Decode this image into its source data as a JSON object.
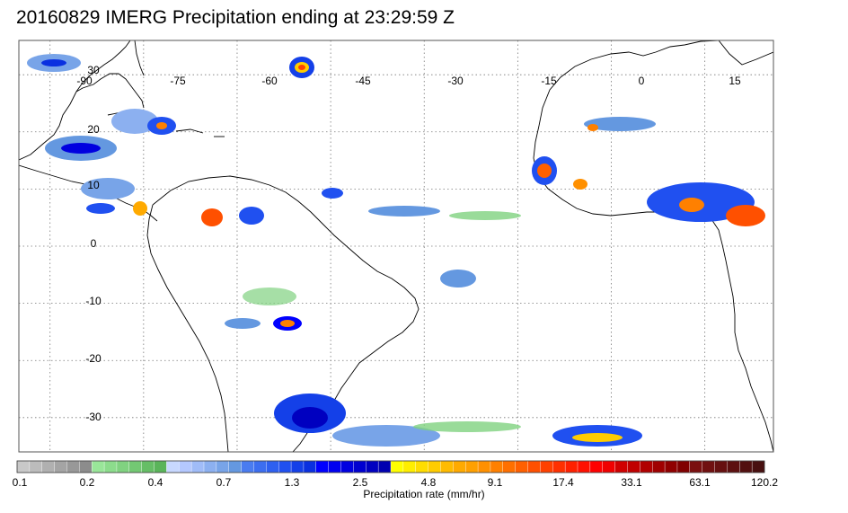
{
  "title": "20160829 IMERG Precipitation ending at 23:29:59 Z",
  "map": {
    "lon_labels": [
      "-90",
      "-75",
      "-60",
      "-45",
      "-30",
      "-15",
      "0",
      "15"
    ],
    "lat_labels": [
      "30",
      "20",
      "10",
      "0",
      "-10",
      "-20",
      "-30"
    ],
    "lon_range": [
      -95,
      26
    ],
    "lat_range": [
      36,
      -36
    ],
    "grid": "dotted"
  },
  "colorbar": {
    "label": "Precipitation rate (mm/hr)",
    "tick_labels": [
      "0.1",
      "0.2",
      "0.4",
      "0.7",
      "1.3",
      "2.5",
      "4.8",
      "9.1",
      "17.4",
      "33.1",
      "63.1",
      "120.2"
    ],
    "colors": [
      "#c8c8c8",
      "#bcbcbc",
      "#b0b0b0",
      "#a4a4a4",
      "#989898",
      "#8c8c8c",
      "#99e699",
      "#8cdc8c",
      "#80d280",
      "#73c873",
      "#66be66",
      "#5ab45a",
      "#c8d8ff",
      "#b4c8ff",
      "#a0bcf8",
      "#8cb0f0",
      "#78a4e8",
      "#6498e0",
      "#4a7cf0",
      "#3c6ef0",
      "#2e60f0",
      "#2050f0",
      "#1440e8",
      "#0a30e0",
      "#0000ff",
      "#0000f0",
      "#0000e0",
      "#0000d0",
      "#0000c0",
      "#0000b0",
      "#ffff00",
      "#ffee00",
      "#ffdd00",
      "#ffcc00",
      "#ffbb00",
      "#ffaa00",
      "#ffa000",
      "#ff9000",
      "#ff8000",
      "#ff7000",
      "#ff6000",
      "#ff5000",
      "#ff4000",
      "#ff3000",
      "#ff2000",
      "#ff1000",
      "#ff0000",
      "#f00000",
      "#d00000",
      "#c00000",
      "#b00000",
      "#a00000",
      "#900000",
      "#800000",
      "#7a1010",
      "#701010",
      "#661010",
      "#5c1010",
      "#521010",
      "#481010"
    ]
  }
}
